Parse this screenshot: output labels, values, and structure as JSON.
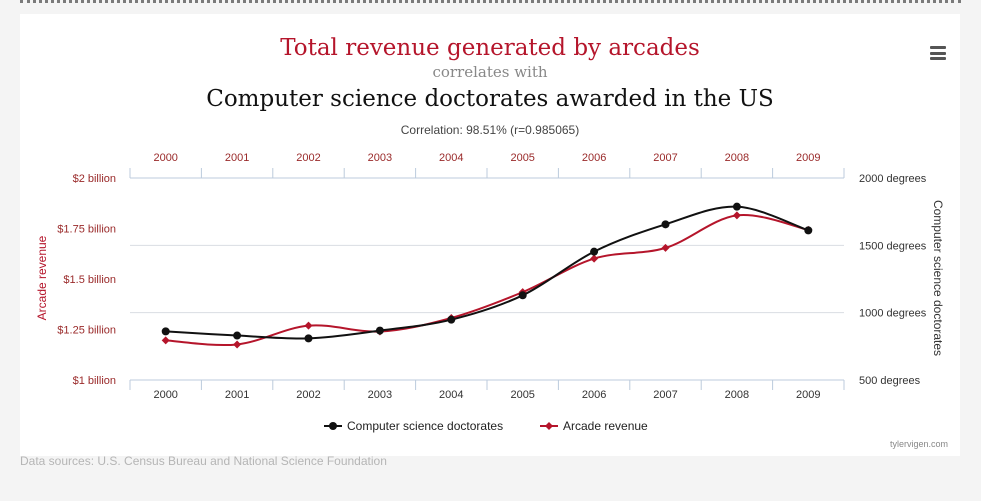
{
  "colors": {
    "arcade": "#b5152b",
    "doctorates": "#111111",
    "axis_arcade": "#9a2a2a",
    "axis_doct": "#333333",
    "grid": "#d9dde3",
    "muted": "#888888"
  },
  "chart_data": {
    "type": "line",
    "title": "Total revenue generated by arcades",
    "connector": "correlates with",
    "subtitle": "Computer science doctorates awarded in the US",
    "correlation": "Correlation: 98.51% (r=0.985065)",
    "x": [
      "2000",
      "2001",
      "2002",
      "2003",
      "2004",
      "2005",
      "2006",
      "2007",
      "2008",
      "2009"
    ],
    "y_left": {
      "label": "Arcade revenue",
      "range": [
        1.0,
        2.0
      ],
      "ticks": [
        1.0,
        1.25,
        1.5,
        1.75,
        2.0
      ],
      "tick_labels": [
        "$1 billion",
        "$1.25 billion",
        "$1.5 billion",
        "$1.75 billion",
        "$2 billion"
      ]
    },
    "y_right": {
      "label": "Computer science doctorates",
      "range": [
        500,
        2000
      ],
      "ticks": [
        500,
        1000,
        1500,
        2000
      ],
      "tick_labels": [
        "500 degrees",
        "1000 degrees",
        "1500 degrees",
        "2000 degrees"
      ]
    },
    "series": [
      {
        "name": "Computer science doctorates",
        "axis": "right",
        "values": [
          861,
          830,
          809,
          867,
          948,
          1129,
          1453,
          1656,
          1787,
          1611
        ]
      },
      {
        "name": "Arcade revenue",
        "axis": "left",
        "values": [
          1.196,
          1.176,
          1.269,
          1.24,
          1.307,
          1.435,
          1.601,
          1.654,
          1.815,
          1.743
        ]
      }
    ],
    "legend_position": "bottom-center",
    "credit": "tylervigen.com"
  },
  "footer": {
    "sources": "Data sources: U.S. Census Bureau and National Science Foundation"
  }
}
